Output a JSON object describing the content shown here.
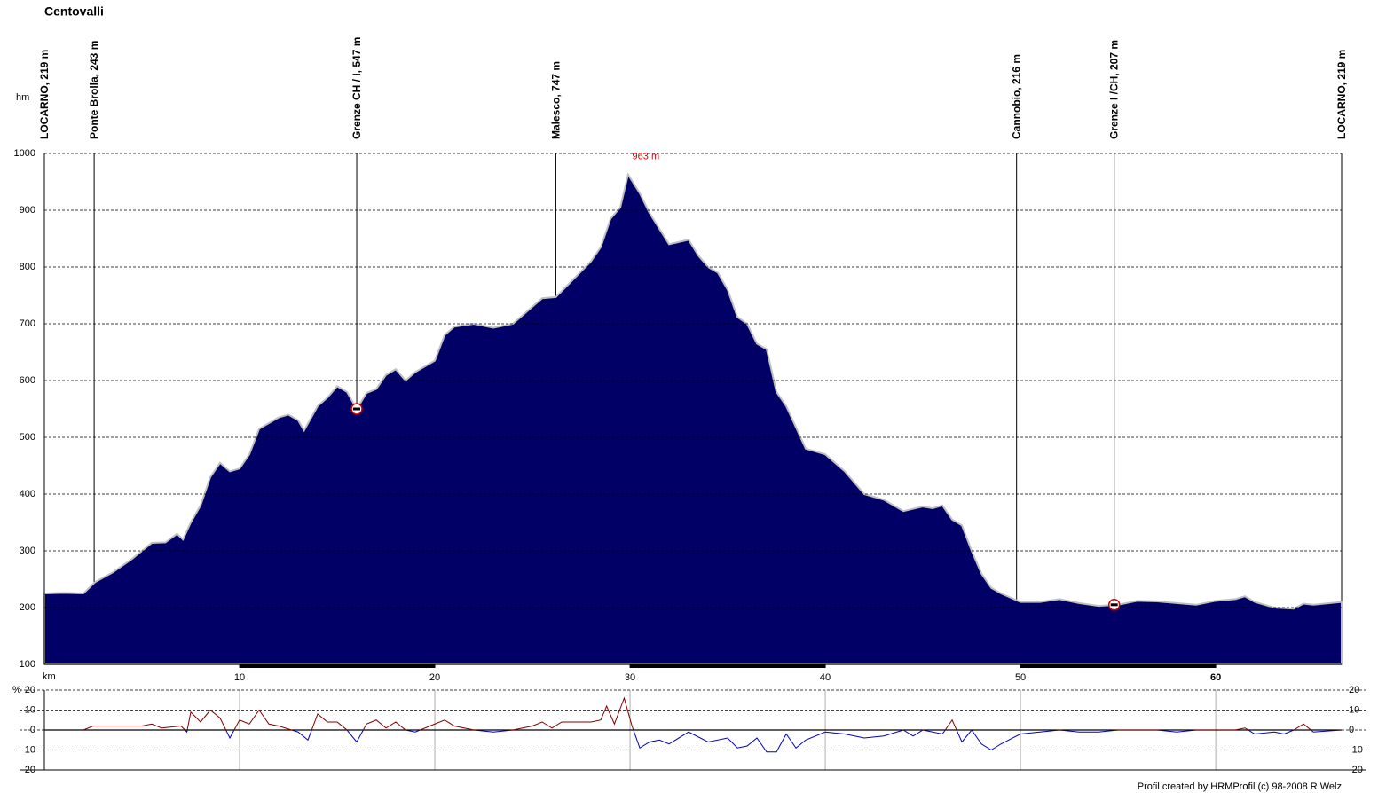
{
  "chart_data": [
    {
      "type": "area",
      "title": "Centovalli",
      "y_label": "hm",
      "x_label": "km",
      "color": "#000066",
      "outline_color": "#c0c0c0",
      "grid": true,
      "xlim": [
        0,
        66.45
      ],
      "xticks": [
        10,
        20,
        30,
        40,
        50,
        60
      ],
      "ylim": [
        100,
        1000
      ],
      "yticks": [
        100,
        200,
        300,
        400,
        500,
        600,
        700,
        800,
        900,
        1000
      ],
      "waypoints": [
        {
          "label": "LOCARNO, 219 m",
          "x": 0
        },
        {
          "label": "Ponte Brolla, 243 m",
          "x": 2.55
        },
        {
          "label": "Grenze CH / I, 547 m",
          "x": 16.0
        },
        {
          "label": "Malesco, 747 m",
          "x": 26.2
        },
        {
          "label": "Cannobio, 216 m",
          "x": 49.8
        },
        {
          "label": "Grenze I /CH, 207 m",
          "x": 54.8
        },
        {
          "label": "LOCARNO, 219 m",
          "x": 66.45
        }
      ],
      "annotation": {
        "label": "963 m",
        "x": 29.9,
        "y": 963,
        "color": "#e00000"
      },
      "x": [
        0,
        1,
        2,
        2.6,
        3.5,
        4.5,
        5,
        5.5,
        6.2,
        6.8,
        7.1,
        7.5,
        8,
        8.5,
        9,
        9.5,
        10,
        10.5,
        11,
        11.5,
        12,
        12.5,
        13,
        13.3,
        14,
        14.5,
        15,
        15.5,
        16,
        16.5,
        17,
        17.5,
        18,
        18.5,
        19,
        20,
        20.5,
        21,
        22,
        23,
        24,
        25,
        25.5,
        26.2,
        27,
        28,
        28.5,
        29,
        29.5,
        29.9,
        30.5,
        31,
        32,
        33,
        33.5,
        34,
        34.5,
        35,
        35.5,
        36,
        36.5,
        37,
        37.5,
        38,
        39,
        40,
        41,
        42,
        43,
        44,
        45,
        45.5,
        46,
        46.5,
        47,
        47.5,
        48,
        48.5,
        49,
        50,
        51,
        52,
        53,
        54,
        55,
        56,
        57,
        58,
        59,
        60,
        61,
        61.5,
        62,
        63,
        64,
        64.5,
        65,
        66.45
      ],
      "values": [
        225,
        226,
        225,
        245,
        262,
        286,
        300,
        314,
        315,
        330,
        320,
        350,
        380,
        430,
        455,
        440,
        445,
        470,
        515,
        525,
        535,
        540,
        530,
        512,
        555,
        570,
        590,
        580,
        550,
        578,
        585,
        610,
        620,
        600,
        615,
        635,
        680,
        695,
        700,
        693,
        700,
        730,
        745,
        747,
        775,
        810,
        835,
        885,
        905,
        963,
        930,
        895,
        840,
        848,
        820,
        800,
        790,
        760,
        712,
        700,
        665,
        655,
        580,
        555,
        480,
        470,
        440,
        400,
        390,
        370,
        378,
        375,
        380,
        355,
        345,
        300,
        260,
        235,
        225,
        210,
        210,
        215,
        208,
        203,
        205,
        212,
        211,
        208,
        205,
        212,
        215,
        220,
        210,
        200,
        198,
        207,
        205,
        210
      ]
    },
    {
      "type": "line",
      "y_label": "%",
      "color_positive": "#800000",
      "color_negative": "#0000c0",
      "xlim": [
        0,
        66.45
      ],
      "ylim": [
        -20,
        20
      ],
      "yticks": [
        -20,
        -10,
        0,
        10,
        20
      ],
      "x": [
        2,
        2.5,
        4,
        5,
        5.5,
        6,
        7,
        7.3,
        7.5,
        8,
        8.5,
        9,
        9.5,
        10,
        10.5,
        11,
        11.5,
        12,
        13,
        13.5,
        14,
        14.5,
        15,
        15.5,
        16,
        16.5,
        17,
        17.5,
        18,
        18.5,
        19,
        20,
        20.5,
        21,
        22,
        23,
        24,
        25,
        25.5,
        26,
        26.5,
        27,
        28,
        28.5,
        28.8,
        29.2,
        29.7,
        30.1,
        30.5,
        31,
        31.5,
        32,
        33,
        34,
        35,
        35.5,
        36,
        36.5,
        37,
        37.5,
        38,
        38.5,
        39,
        40,
        41,
        42,
        43,
        44,
        44.5,
        45,
        46,
        46.5,
        47,
        47.5,
        48,
        48.5,
        49,
        50,
        51,
        52,
        53,
        54,
        55,
        56,
        57,
        58,
        59,
        60,
        61,
        61.5,
        62,
        63,
        63.5,
        64,
        64.5,
        65,
        66.45
      ],
      "values": [
        0,
        2,
        2,
        2,
        3,
        1,
        2,
        -1,
        9,
        4,
        10,
        6,
        -4,
        5,
        3,
        10,
        3,
        2,
        -1,
        -5,
        8,
        4,
        4,
        0,
        -6,
        3,
        5,
        1,
        4,
        0,
        -1,
        3,
        5,
        2,
        0,
        -1,
        0,
        2,
        4,
        1,
        4,
        4,
        4,
        5,
        12,
        3,
        16,
        2,
        -9,
        -6,
        -5,
        -7,
        -1,
        -6,
        -4,
        -9,
        -8,
        -4,
        -11,
        -11,
        -2,
        -9,
        -5,
        -1,
        -2,
        -4,
        -3,
        0,
        -3,
        0,
        -2,
        5,
        -6,
        0,
        -7,
        -10,
        -7,
        -2,
        -1,
        0,
        -1,
        -1,
        0,
        0,
        0,
        -1,
        0,
        0,
        0,
        1,
        -2,
        -1,
        -2,
        0,
        3,
        -1,
        0
      ]
    }
  ],
  "footer": "Profil created by HRMProfil (c) 98-2008 R.Welz"
}
